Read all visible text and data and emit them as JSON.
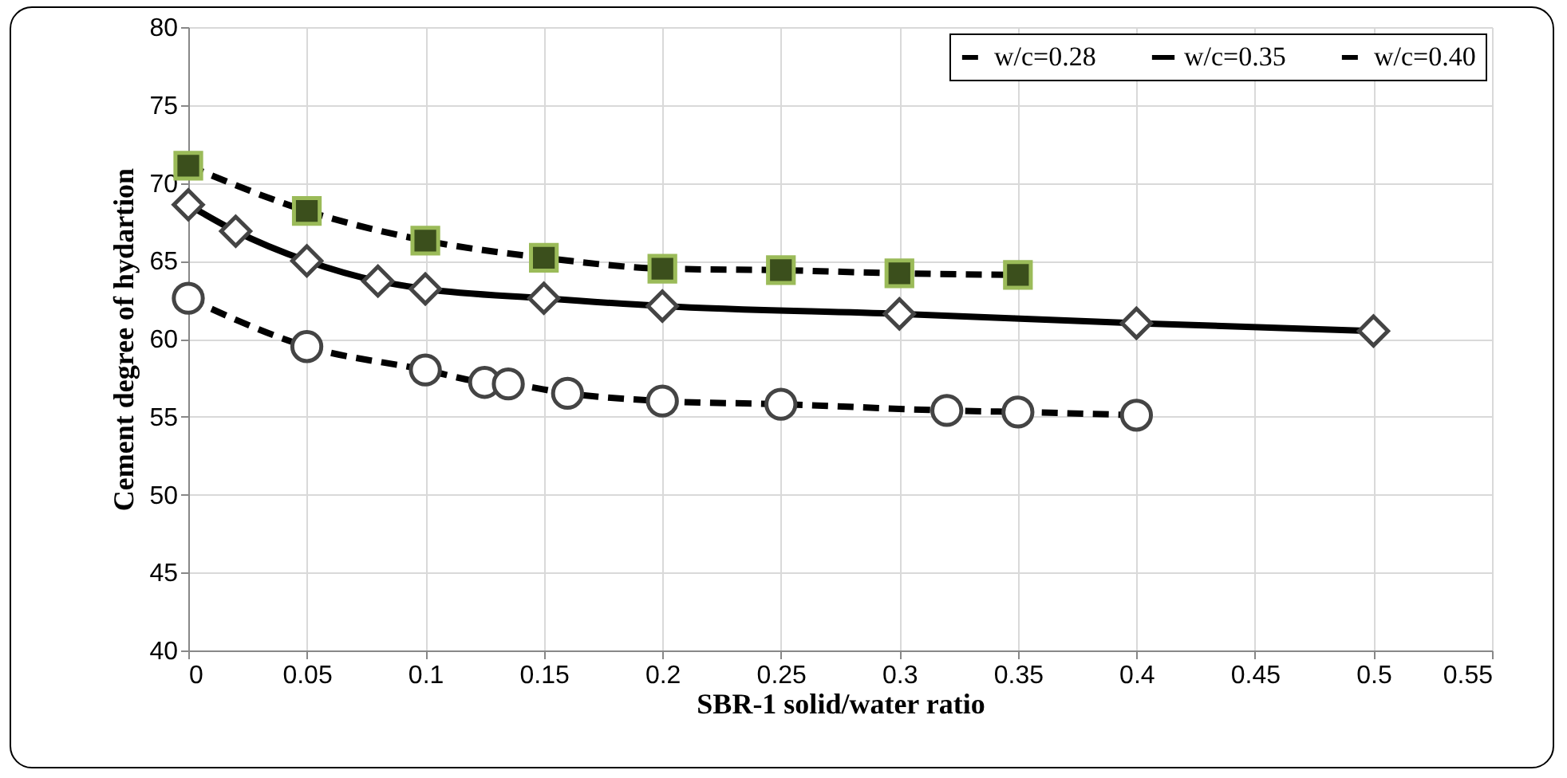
{
  "chart_data": {
    "type": "line",
    "xlabel": "SBR-1 solid/water ratio",
    "ylabel": "Cement degree of hydartion",
    "xlim": [
      0,
      0.55
    ],
    "xticks": [
      0,
      0.05,
      0.1,
      0.15,
      0.2,
      0.25,
      0.3,
      0.35,
      0.4,
      0.45,
      0.5,
      0.55
    ],
    "ylim": [
      40,
      80
    ],
    "yticks": [
      40,
      45,
      50,
      55,
      60,
      65,
      70,
      75,
      80
    ],
    "grid": true,
    "legend": "top right",
    "series": [
      {
        "name": "w/c=0.28",
        "color": "#000000",
        "marker": "circle",
        "line_style": "dashed",
        "x": [
          0,
          0.05,
          0.1,
          0.125,
          0.135,
          0.16,
          0.2,
          0.25,
          0.32,
          0.35,
          0.4
        ],
        "values": [
          62.6,
          59.5,
          58,
          57.2,
          57.1,
          56.5,
          56,
          55.8,
          55.4,
          55.3,
          55.1
        ]
      },
      {
        "name": "w/c=0.35",
        "color": "#000000",
        "marker": "diamond",
        "line_style": "solid",
        "x": [
          0,
          0.02,
          0.05,
          0.08,
          0.1,
          0.15,
          0.2,
          0.3,
          0.4,
          0.5
        ],
        "values": [
          68.6,
          66.9,
          65,
          63.7,
          63.2,
          62.6,
          62.1,
          61.6,
          61,
          60.5
        ]
      },
      {
        "name": "w/c=0.40",
        "color": "#000000",
        "marker": "square",
        "line_style": "dashed",
        "x": [
          0,
          0.05,
          0.1,
          0.15,
          0.2,
          0.25,
          0.3,
          0.35
        ],
        "values": [
          71.1,
          68.2,
          66.3,
          65.2,
          64.5,
          64.4,
          64.2,
          64.1
        ]
      }
    ]
  }
}
